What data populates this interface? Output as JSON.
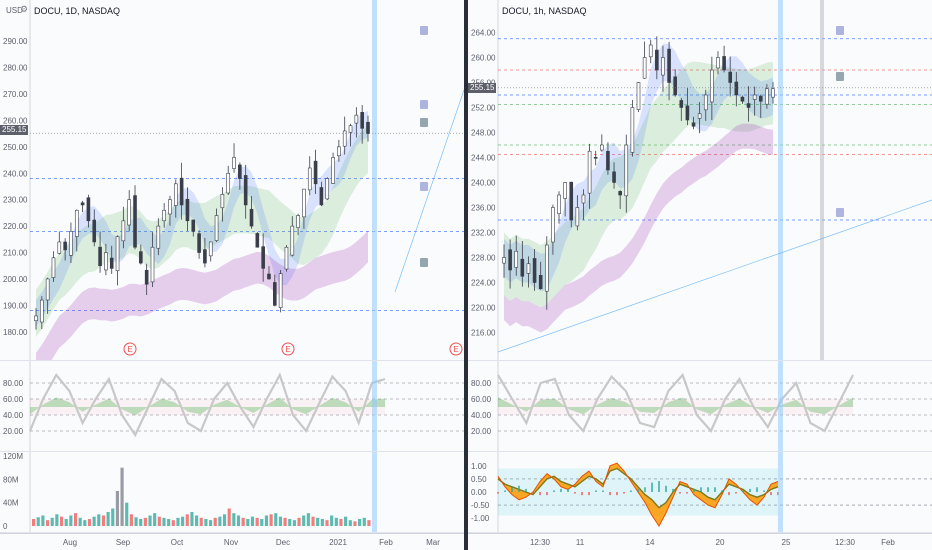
{
  "currency_label": "USD",
  "gear_icon": "gear-icon",
  "current_price": "255.15",
  "colors": {
    "up": "#26a69a",
    "down": "#ef5350",
    "candle": "#3a3e4a",
    "blue_band": "#2962ff",
    "purple_band": "#9c27b0",
    "green_band": "#4caf50",
    "grid_dash": "#2962ff",
    "macd_orange": "#ff9800",
    "macd_olive": "#7d7a1a"
  },
  "chart_data": [
    {
      "type": "line",
      "subtype": "candlestick",
      "title": "DOCU, 1D, NASDAQ",
      "x_tick_labels": [
        "Aug",
        "Sep",
        "Oct",
        "Nov",
        "Dec",
        "2021",
        "Feb",
        "Mar"
      ],
      "y_tick_labels": [
        "180.00",
        "190.00",
        "200.00",
        "210.00",
        "220.00",
        "230.00",
        "240.00",
        "250.00",
        "260.00",
        "270.00",
        "280.00",
        "290.00"
      ],
      "ylim": [
        175,
        298
      ],
      "earnings_markers": [
        "E",
        "E",
        "E"
      ],
      "close_series": [
        186,
        192,
        200,
        208,
        214,
        211,
        218,
        226,
        228,
        222,
        214,
        205,
        210,
        204,
        216,
        222,
        230,
        212,
        206,
        198,
        212,
        220,
        226,
        230,
        236,
        228,
        222,
        218,
        210,
        206,
        214,
        224,
        232,
        240,
        246,
        238,
        228,
        220,
        212,
        204,
        200,
        190,
        202,
        212,
        220,
        224,
        234,
        242,
        236,
        228,
        238,
        246,
        250,
        256,
        258,
        262,
        257,
        255
      ],
      "grid": false
    },
    {
      "type": "line",
      "subtype": "candlestick",
      "title": "DOCU, 1h, NASDAQ",
      "x_tick_labels": [
        "12:30",
        "11",
        "14",
        "20",
        "25",
        "12:30",
        "Feb"
      ],
      "y_tick_labels": [
        "216.00",
        "220.00",
        "224.00",
        "228.00",
        "232.00",
        "236.00",
        "240.00",
        "244.00",
        "248.00",
        "252.00",
        "256.00",
        "260.00",
        "264.00"
      ],
      "ylim": [
        214,
        266
      ],
      "close_series": [
        228,
        226,
        229,
        225,
        227,
        224,
        223,
        230,
        236,
        238,
        240,
        234,
        236,
        238,
        245,
        244,
        246,
        242,
        240,
        238,
        246,
        252,
        256,
        260,
        262,
        258,
        260,
        256,
        254,
        252,
        250,
        249,
        251,
        254,
        258,
        260,
        258,
        256,
        254,
        253,
        252,
        254,
        253,
        255,
        255
      ],
      "grid": false
    },
    {
      "type": "line",
      "title": "",
      "pane": "oscillator-left",
      "y_tick_labels": [
        "80.00",
        "60.00",
        "40.00",
        "20.00"
      ],
      "ylim": [
        0,
        100
      ],
      "levels": [
        80,
        60,
        40,
        20
      ],
      "series": [
        {
          "values": [
            20,
            60,
            90,
            70,
            30,
            60,
            85,
            40,
            15,
            50,
            85,
            70,
            30,
            20,
            60,
            80,
            50,
            25,
            60,
            90,
            40,
            20,
            55,
            88,
            70,
            30,
            80,
            85
          ]
        }
      ]
    },
    {
      "type": "line",
      "title": "",
      "pane": "oscillator-right",
      "y_tick_labels": [
        "80.00",
        "60.00",
        "40.00",
        "20.00"
      ],
      "ylim": [
        0,
        100
      ],
      "levels": [
        80,
        60,
        40,
        20
      ],
      "series": [
        {
          "values": [
            90,
            60,
            30,
            80,
            85,
            40,
            20,
            60,
            88,
            70,
            30,
            25,
            70,
            90,
            40,
            20,
            60,
            85,
            50,
            25,
            60,
            80,
            30,
            20,
            55,
            90
          ]
        }
      ]
    },
    {
      "type": "bar",
      "title": "",
      "pane": "volume-left",
      "y_tick_labels": [
        "120M",
        "80M",
        "40M",
        "0"
      ],
      "ylim": [
        0,
        120
      ],
      "values": [
        12,
        15,
        18,
        10,
        14,
        20,
        16,
        12,
        18,
        22,
        14,
        10,
        12,
        16,
        20,
        18,
        24,
        30,
        60,
        100,
        40,
        20,
        15,
        12,
        14,
        18,
        22,
        16,
        14,
        12,
        10,
        14,
        16,
        20,
        24,
        18,
        14,
        12,
        10,
        14,
        16,
        20,
        30,
        22,
        18,
        14,
        12,
        16,
        14,
        12,
        18,
        20,
        22,
        16,
        14,
        12,
        10,
        14,
        18,
        22,
        16,
        14,
        12,
        10,
        18,
        14,
        12,
        16,
        10,
        8,
        12,
        14,
        10
      ]
    },
    {
      "type": "area",
      "title": "",
      "pane": "macd-right",
      "y_tick_labels": [
        "1.00",
        "0.50",
        "0.00",
        "-0.50",
        "-1.00"
      ],
      "ylim": [
        -1.3,
        1.3
      ],
      "series": [
        {
          "values": [
            0.5,
            0.3,
            0.2,
            0.1,
            0.0,
            -0.1,
            0.2,
            0.5,
            0.6,
            0.4,
            0.3,
            0.2,
            0.4,
            0.6,
            0.5,
            0.3,
            0.8,
            0.9,
            0.7,
            0.5,
            0.2,
            -0.1,
            -0.3,
            -0.6,
            -0.4,
            0.0,
            0.3,
            0.2,
            0.1,
            0.0,
            -0.2,
            -0.3,
            0.0,
            0.3,
            0.2,
            0.1,
            -0.1,
            -0.2,
            -0.1,
            0.1,
            0.2
          ]
        },
        {
          "values": [
            0.6,
            0.2,
            -0.1,
            -0.3,
            -0.2,
            0.0,
            0.4,
            0.7,
            0.5,
            0.2,
            0.1,
            0.3,
            0.6,
            0.8,
            0.4,
            0.2,
            1.0,
            1.1,
            0.8,
            0.4,
            0.0,
            -0.4,
            -0.9,
            -1.3,
            -0.8,
            -0.2,
            0.4,
            0.3,
            -0.1,
            -0.3,
            -0.5,
            -0.6,
            -0.1,
            0.5,
            0.3,
            0.0,
            -0.3,
            -0.5,
            -0.2,
            0.3,
            0.4
          ]
        }
      ]
    }
  ]
}
